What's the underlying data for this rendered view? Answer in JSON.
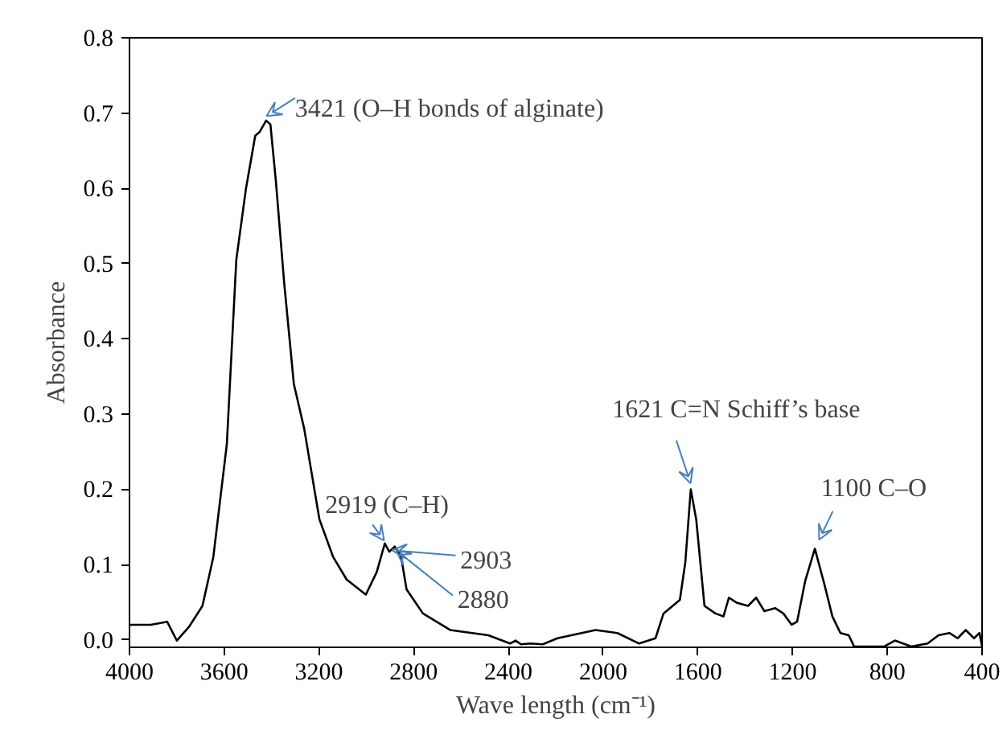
{
  "chart_data": {
    "type": "line",
    "xlabel": "Wave length (cm⁻¹)",
    "ylabel": "Absorbance",
    "x": [
      4000,
      3910,
      3841,
      3800,
      3749,
      3692,
      3646,
      3589,
      3549,
      3508,
      3469,
      3450,
      3423,
      3405,
      3382,
      3347,
      3306,
      3262,
      3198,
      3140,
      3083,
      3002,
      2956,
      2922,
      2903,
      2880,
      2853,
      2830,
      2761,
      2646,
      2485,
      2393,
      2370,
      2347,
      2308,
      2255,
      2193,
      2032,
      1940,
      1848,
      1779,
      1745,
      1676,
      1653,
      1630,
      1607,
      1572,
      1526,
      1492,
      1469,
      1434,
      1388,
      1354,
      1319,
      1273,
      1239,
      1204,
      1181,
      1147,
      1106,
      1066,
      1032,
      998,
      963,
      940,
      814,
      768,
      699,
      630,
      584,
      538,
      503,
      469,
      434,
      411,
      400
    ],
    "series": [
      {
        "color": "#000000",
        "values": [
          0.02,
          0.02,
          0.024,
          -0.001,
          0.017,
          0.045,
          0.11,
          0.26,
          0.505,
          0.6,
          0.67,
          0.675,
          0.69,
          0.685,
          0.61,
          0.475,
          0.34,
          0.28,
          0.16,
          0.11,
          0.08,
          0.06,
          0.09,
          0.128,
          0.117,
          0.124,
          0.11,
          0.067,
          0.035,
          0.013,
          0.006,
          -0.005,
          -0.001,
          -0.006,
          -0.005,
          -0.006,
          0.002,
          0.013,
          0.009,
          -0.005,
          0.002,
          0.035,
          0.053,
          0.103,
          0.2,
          0.16,
          0.045,
          0.035,
          0.031,
          0.056,
          0.049,
          0.045,
          0.056,
          0.038,
          0.042,
          0.035,
          0.02,
          0.024,
          0.078,
          0.121,
          0.074,
          0.031,
          0.009,
          0.006,
          -0.009,
          -0.009,
          -0.001,
          -0.009,
          -0.005,
          0.006,
          0.009,
          0.002,
          0.013,
          0.002,
          0.009,
          -0.009
        ]
      }
    ],
    "xlim": [
      4000,
      400
    ],
    "xticks": [
      4000,
      3600,
      3200,
      2800,
      2400,
      2000,
      1600,
      1200,
      800,
      400
    ],
    "ylim": [
      -0.01,
      0.8
    ],
    "yticks": [
      {
        "value": 0,
        "label": "0.0"
      },
      0.1,
      0.2,
      0.3,
      0.4,
      0.5,
      0.6,
      0.7,
      0.8
    ],
    "grid": false,
    "line_style": "solid",
    "annotations": [
      {
        "text": "3421 (O–H bonds of alginate)",
        "x": 3421,
        "y": 0.69
      },
      {
        "text": "2919 (C–H)",
        "x": 2919,
        "y": 0.128
      },
      {
        "text": "2903",
        "x": 2903,
        "y": 0.117
      },
      {
        "text": "2880",
        "x": 2880,
        "y": 0.124
      },
      {
        "text": "1621 C=N Schiff’s base",
        "x": 1621,
        "y": 0.2
      },
      {
        "text": "1100 C–O",
        "x": 1100,
        "y": 0.121
      }
    ]
  }
}
